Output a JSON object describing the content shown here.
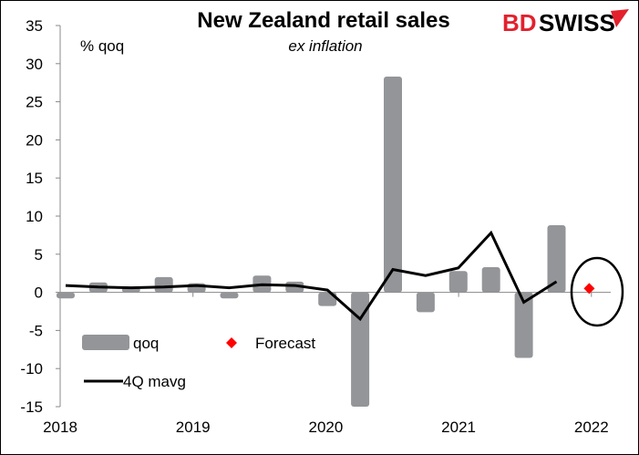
{
  "chart_data": {
    "type": "bar",
    "title": "New Zealand retail sales",
    "subtitle": "ex inflation",
    "ylabel": "% qoq",
    "xlabel": "",
    "ylim": [
      -15,
      35
    ],
    "yticks": [
      -15,
      -10,
      -5,
      0,
      5,
      10,
      15,
      20,
      25,
      30,
      35
    ],
    "xticks": [
      "2018",
      "2019",
      "2020",
      "2021",
      "2022"
    ],
    "categories": [
      "2018Q1",
      "2018Q2",
      "2018Q3",
      "2018Q4",
      "2019Q1",
      "2019Q2",
      "2019Q3",
      "2019Q4",
      "2020Q1",
      "2020Q2",
      "2020Q3",
      "2020Q4",
      "2021Q1",
      "2021Q2",
      "2021Q3",
      "2021Q4",
      "2022Q1"
    ],
    "series": [
      {
        "name": "qoq",
        "type": "bar",
        "color": "#939598",
        "values": [
          -0.8,
          1.3,
          0.6,
          2.0,
          1.2,
          -0.8,
          2.2,
          1.4,
          -1.8,
          -15.0,
          28.3,
          -2.6,
          2.8,
          3.3,
          -8.6,
          8.8,
          null
        ]
      },
      {
        "name": "4Q mavg",
        "type": "line",
        "color": "#000000",
        "values": [
          0.9,
          0.7,
          0.6,
          0.7,
          0.9,
          0.6,
          1.0,
          0.9,
          0.3,
          -3.5,
          3.0,
          2.2,
          3.2,
          7.8,
          -1.3,
          1.4,
          null
        ]
      },
      {
        "name": "Forecast",
        "type": "scatter",
        "marker": "diamond",
        "color": "#ff0000",
        "values": [
          null,
          null,
          null,
          null,
          null,
          null,
          null,
          null,
          null,
          null,
          null,
          null,
          null,
          null,
          null,
          null,
          0.5
        ]
      }
    ],
    "annotations": [
      "ellipse circling the 2022Q1 forecast"
    ],
    "grid": false,
    "legend": "bottom-left"
  },
  "logo": {
    "text_red": "BD",
    "text_black": "SWISS",
    "red": "#e3212d"
  }
}
